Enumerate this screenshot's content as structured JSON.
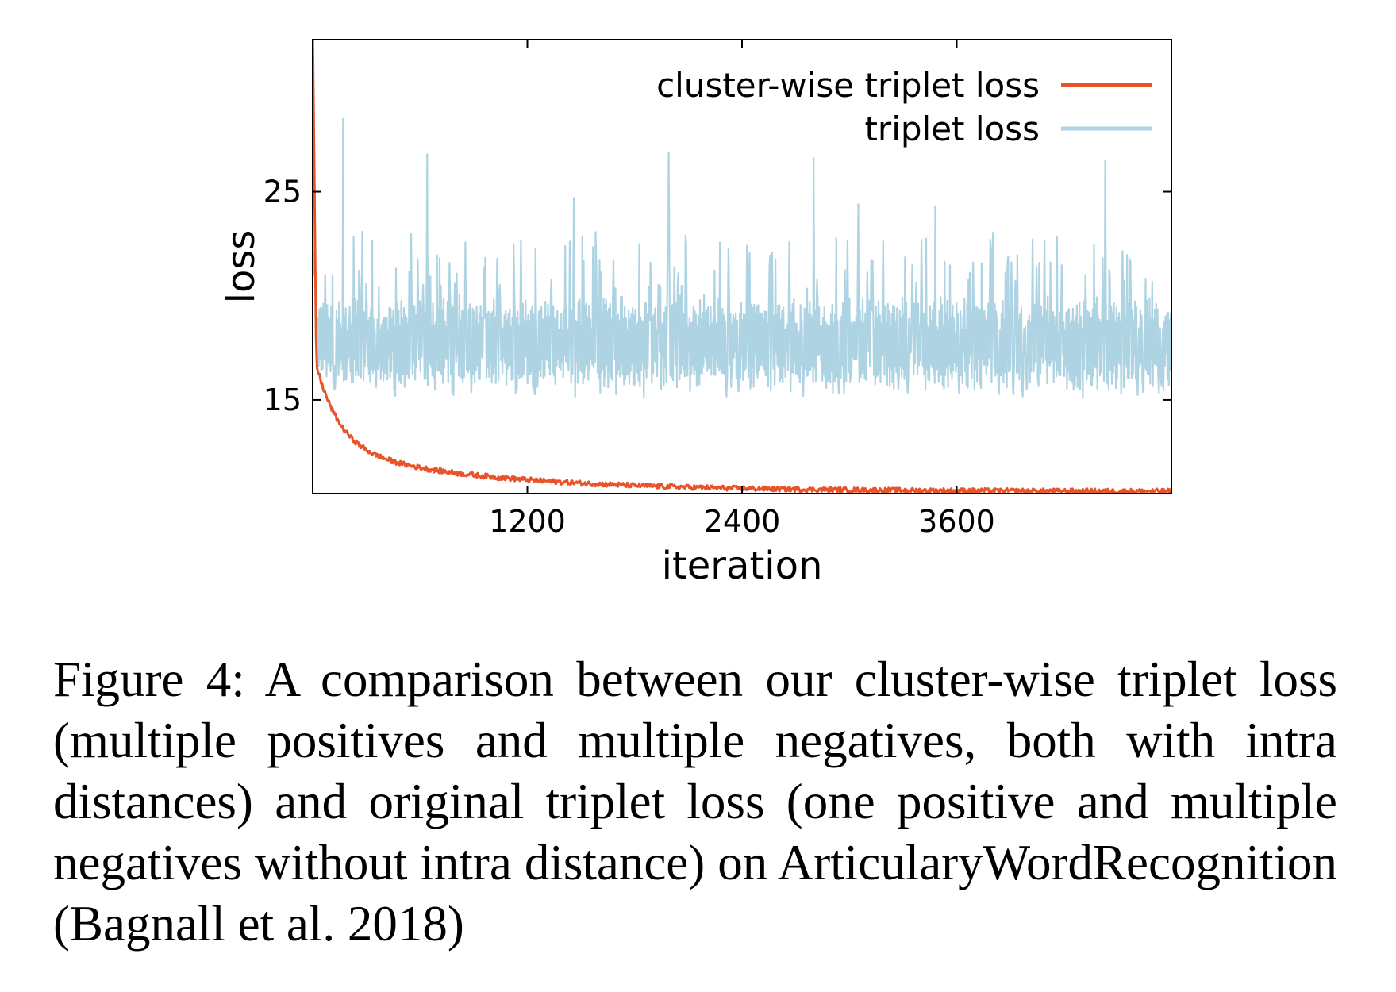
{
  "chart_data": {
    "type": "line",
    "xlabel": "iteration",
    "ylabel": "loss",
    "xlim": [
      0,
      4800
    ],
    "ylim": [
      10.5,
      32.3
    ],
    "xticks": [
      1200,
      2400,
      3600
    ],
    "yticks": [
      15,
      25
    ],
    "grid": false,
    "legend_position": "top-right",
    "series": [
      {
        "name": "cluster-wise triplet loss",
        "color": "#e8532a",
        "curve": {
          "start": 33.0,
          "dip_at": 20,
          "dip_value": 17.3,
          "final": 10.6,
          "decay_components": [
            {
              "amplitude": 4.0,
              "time_constant": 130
            },
            {
              "amplitude": 2.1,
              "time_constant": 900
            }
          ],
          "noise_amplitude": 0.12,
          "num_points": 1000
        }
      },
      {
        "name": "triplet loss",
        "color": "#aed3e3",
        "curve": {
          "start": 22.2,
          "typical_low": 16.0,
          "typical_high": 19.5,
          "num_points": 1300
        },
        "spikes": [
          {
            "x": 170,
            "y": 28.5
          },
          {
            "x": 640,
            "y": 26.8
          },
          {
            "x": 1460,
            "y": 24.7
          },
          {
            "x": 1990,
            "y": 26.9
          },
          {
            "x": 2800,
            "y": 26.6
          },
          {
            "x": 3050,
            "y": 24.4
          },
          {
            "x": 3480,
            "y": 24.3
          },
          {
            "x": 4430,
            "y": 26.5
          }
        ]
      }
    ]
  },
  "caption": "Figure 4: A comparison between our cluster-wise triplet loss (multiple positives and multiple negatives, both with intra distances) and original triplet loss (one positive and multiple negatives without intra distance) on ArticularyWordRecognition (Bagnall et al. 2018)"
}
